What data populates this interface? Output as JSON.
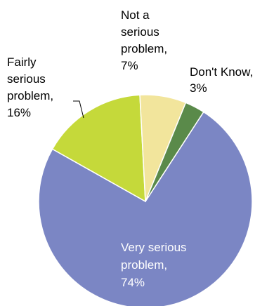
{
  "chart_data": {
    "type": "pie",
    "categories": [
      "Very serious problem",
      "Fairly serious problem",
      "Not a serious problem",
      "Don't Know"
    ],
    "values": [
      74,
      16,
      7,
      3
    ],
    "unit": "%",
    "colors": [
      "#7b86c4",
      "#c5d93a",
      "#f2e59c",
      "#5a8a4a"
    ],
    "labels": [
      [
        "Very serious",
        "problem,",
        "74%"
      ],
      [
        "Fairly",
        "serious",
        "problem,",
        "16%"
      ],
      [
        "Not a",
        "serious",
        "problem,",
        "7%"
      ],
      [
        "Don't Know,",
        "3%"
      ]
    ],
    "start_angle_deg": 33,
    "direction": "clockwise",
    "legend": "none",
    "title": ""
  }
}
